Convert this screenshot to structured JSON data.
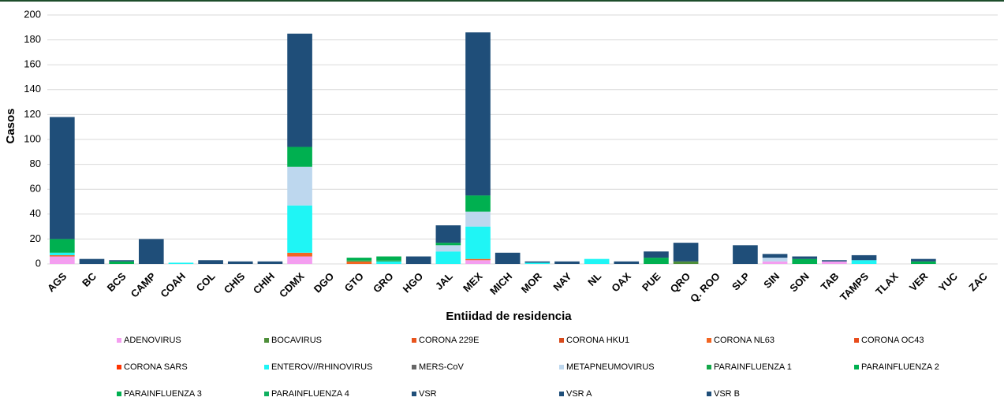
{
  "chart_data": {
    "type": "stacked-bar",
    "x_label": "Entiidad de residencia",
    "y_label": "Casos",
    "categories": [
      "AGS",
      "BC",
      "BCS",
      "CAMP",
      "COAH",
      "COL",
      "CHIS",
      "CHIH",
      "CDMX",
      "DGO",
      "GTO",
      "GRO",
      "HGO",
      "JAL",
      "MEX",
      "MICH",
      "MOR",
      "NAY",
      "NL",
      "OAX",
      "PUE",
      "QRO",
      "Q. ROO",
      "SLP",
      "SIN",
      "SON",
      "TAB",
      "TAMPS",
      "TLAX",
      "VER",
      "YUC",
      "ZAC"
    ],
    "ylim": [
      0,
      200
    ],
    "yticks": [
      0,
      20,
      40,
      60,
      80,
      100,
      120,
      140,
      160,
      180,
      200
    ],
    "grid": true,
    "series": [
      {
        "name": "ADENOVIRUS",
        "color": "#f49ef0",
        "values": [
          6,
          0,
          0,
          0,
          0,
          0,
          0,
          0,
          6,
          0,
          0,
          0,
          0,
          0,
          3,
          0,
          0,
          0,
          0,
          0,
          0,
          0,
          0,
          0,
          2,
          0,
          2,
          0,
          0,
          0,
          0,
          0
        ]
      },
      {
        "name": "BOCAVIRUS",
        "color": "#4e8f3a",
        "values": [
          0,
          0,
          0,
          0,
          0,
          0,
          0,
          0,
          0,
          0,
          0,
          0,
          0,
          0,
          0,
          0,
          0,
          0,
          0,
          0,
          0,
          2,
          0,
          0,
          0,
          0,
          0,
          0,
          0,
          0,
          0,
          0
        ]
      },
      {
        "name": "CORONA 229E",
        "color": "#e8541c",
        "values": [
          0,
          0,
          0,
          0,
          0,
          0,
          0,
          0,
          0,
          0,
          0,
          0,
          0,
          0,
          0,
          0,
          0,
          0,
          0,
          0,
          0,
          0,
          0,
          0,
          0,
          0,
          0,
          0,
          0,
          0,
          0,
          0
        ]
      },
      {
        "name": "CORONA HKU1",
        "color": "#d84a1b",
        "values": [
          0,
          0,
          0,
          0,
          0,
          0,
          0,
          0,
          0,
          0,
          0,
          0,
          0,
          0,
          0,
          0,
          0,
          0,
          0,
          0,
          0,
          0,
          0,
          0,
          0,
          0,
          0,
          0,
          0,
          0,
          0,
          0
        ]
      },
      {
        "name": "CORONA NL63",
        "color": "#f26522",
        "values": [
          1,
          0,
          0,
          0,
          0,
          0,
          0,
          0,
          3,
          0,
          2,
          0,
          0,
          0,
          1,
          0,
          0,
          0,
          0,
          0,
          0,
          0,
          0,
          0,
          0,
          0,
          0,
          0,
          0,
          0,
          0,
          0
        ]
      },
      {
        "name": "CORONA OC43",
        "color": "#e84c1c",
        "values": [
          0,
          0,
          0,
          0,
          0,
          0,
          0,
          0,
          0,
          0,
          0,
          0,
          0,
          0,
          0,
          0,
          0,
          0,
          0,
          0,
          0,
          0,
          0,
          0,
          0,
          0,
          0,
          0,
          0,
          0,
          0,
          0
        ]
      },
      {
        "name": "CORONA SARS",
        "color": "#ff3300",
        "values": [
          0,
          0,
          0,
          0,
          0,
          0,
          0,
          0,
          0,
          0,
          0,
          0,
          0,
          0,
          0,
          0,
          0,
          0,
          0,
          0,
          0,
          0,
          0,
          0,
          0,
          0,
          0,
          0,
          0,
          0,
          0,
          0
        ]
      },
      {
        "name": "ENTEROV//RHINOVIRUS",
        "color": "#1ff5f5",
        "values": [
          2,
          0,
          0,
          0,
          1,
          0,
          0,
          0,
          38,
          0,
          0,
          2,
          0,
          10,
          26,
          0,
          1,
          0,
          4,
          0,
          0,
          0,
          0,
          0,
          0,
          0,
          0,
          3,
          0,
          0,
          0,
          0
        ]
      },
      {
        "name": "MERS-CoV",
        "color": "#666666",
        "values": [
          0,
          0,
          0,
          0,
          0,
          0,
          0,
          0,
          0,
          0,
          0,
          0,
          0,
          0,
          0,
          0,
          0,
          0,
          0,
          0,
          0,
          0,
          0,
          0,
          0,
          0,
          0,
          0,
          0,
          0,
          0,
          0
        ]
      },
      {
        "name": "METAPNEUMOVIRUS",
        "color": "#bdd7ee",
        "values": [
          0,
          0,
          0,
          0,
          0,
          0,
          0,
          0,
          31,
          0,
          0,
          0,
          0,
          5,
          12,
          0,
          0,
          0,
          0,
          0,
          0,
          0,
          0,
          0,
          3,
          0,
          0,
          0,
          0,
          0,
          0,
          0
        ]
      },
      {
        "name": "PARAINFLUENZA 1",
        "color": "#14a84a",
        "values": [
          0,
          0,
          0,
          0,
          0,
          0,
          0,
          0,
          0,
          0,
          1,
          1,
          0,
          0,
          0,
          0,
          0,
          0,
          0,
          0,
          0,
          0,
          0,
          0,
          0,
          0,
          0,
          0,
          0,
          0,
          0,
          0
        ]
      },
      {
        "name": "PARAINFLUENZA 2",
        "color": "#00b050",
        "values": [
          0,
          0,
          0,
          0,
          0,
          0,
          0,
          0,
          0,
          0,
          0,
          0,
          0,
          0,
          0,
          0,
          0,
          0,
          0,
          0,
          0,
          0,
          0,
          0,
          0,
          0,
          0,
          0,
          0,
          0,
          0,
          0
        ]
      },
      {
        "name": "PARAINFLUENZA 3",
        "color": "#00b050",
        "values": [
          11,
          0,
          2,
          0,
          0,
          0,
          0,
          0,
          16,
          0,
          2,
          3,
          0,
          2,
          13,
          0,
          0,
          0,
          0,
          0,
          5,
          0,
          0,
          0,
          0,
          4,
          0,
          0,
          0,
          2,
          0,
          0
        ]
      },
      {
        "name": "PARAINFLUENZA 4",
        "color": "#10b060",
        "values": [
          0,
          0,
          0,
          0,
          0,
          0,
          0,
          0,
          0,
          0,
          0,
          0,
          0,
          0,
          0,
          0,
          0,
          0,
          0,
          0,
          0,
          0,
          0,
          0,
          0,
          0,
          0,
          0,
          0,
          0,
          0,
          0
        ]
      },
      {
        "name": "VSR",
        "color": "#1f4e79",
        "values": [
          98,
          4,
          1,
          20,
          0,
          3,
          2,
          2,
          91,
          0,
          0,
          0,
          6,
          14,
          131,
          9,
          1,
          2,
          0,
          2,
          5,
          15,
          0,
          15,
          3,
          2,
          1,
          4,
          0,
          2,
          0,
          0
        ]
      },
      {
        "name": "VSR A",
        "color": "#1f4e79",
        "values": [
          0,
          0,
          0,
          0,
          0,
          0,
          0,
          0,
          0,
          0,
          0,
          0,
          0,
          0,
          0,
          0,
          0,
          0,
          0,
          0,
          0,
          0,
          0,
          0,
          0,
          0,
          0,
          0,
          0,
          0,
          0,
          0
        ]
      },
      {
        "name": "VSR B",
        "color": "#1f4e79",
        "values": [
          0,
          0,
          0,
          0,
          0,
          0,
          0,
          0,
          0,
          0,
          0,
          0,
          0,
          0,
          0,
          0,
          0,
          0,
          0,
          0,
          0,
          0,
          0,
          0,
          0,
          0,
          0,
          0,
          0,
          0,
          0,
          0
        ]
      }
    ]
  }
}
